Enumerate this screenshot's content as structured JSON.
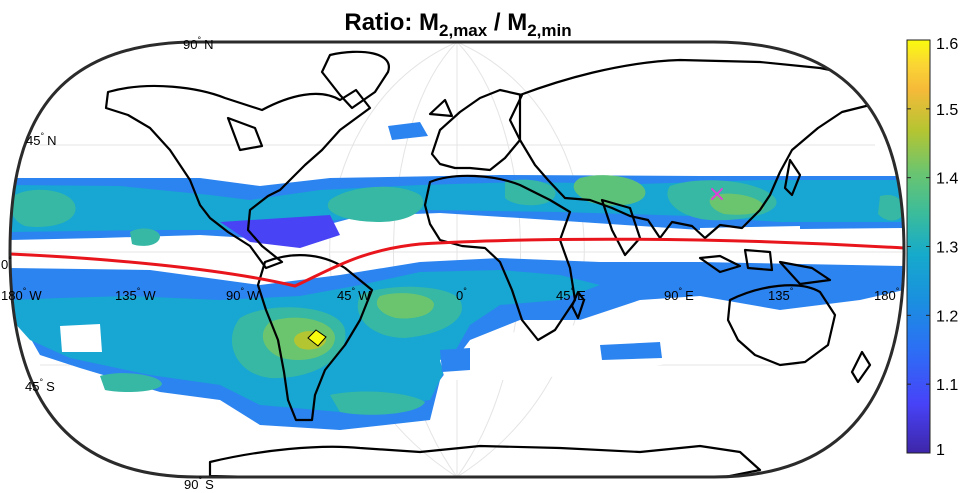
{
  "title": {
    "prefix": "Ratio: M",
    "sub1": "2,max",
    "mid": " / M",
    "sub2": "2,min"
  },
  "lat_labels": [
    {
      "text": "90",
      "deg": "°",
      "dir": "N"
    },
    {
      "text": "45",
      "deg": "°",
      "dir": "N"
    },
    {
      "text": "0",
      "deg": "°",
      "dir": ""
    },
    {
      "text": "45",
      "deg": "°",
      "dir": "S"
    },
    {
      "text": "90",
      "deg": "°",
      "dir": "S"
    }
  ],
  "lon_labels": [
    {
      "text": "180",
      "deg": "°",
      "dir": "W"
    },
    {
      "text": "135",
      "deg": "°",
      "dir": "W"
    },
    {
      "text": "90",
      "deg": "°",
      "dir": "W"
    },
    {
      "text": "45",
      "deg": "°",
      "dir": "W"
    },
    {
      "text": "0",
      "deg": "°",
      "dir": ""
    },
    {
      "text": "45",
      "deg": "°",
      "dir": "E"
    },
    {
      "text": "90",
      "deg": "°",
      "dir": "E"
    },
    {
      "text": "135",
      "deg": "°",
      "dir": ""
    },
    {
      "text": "180",
      "deg": "°",
      "dir": ""
    }
  ],
  "colorbar": {
    "min": 1,
    "max": 1.6,
    "ticks": [
      "1",
      "1.1",
      "1.2",
      "1.3",
      "1.4",
      "1.5",
      "1.6"
    ],
    "colormap": [
      "#3e26a8",
      "#4743f8",
      "#2c6ff5",
      "#1a90df",
      "#16aacb",
      "#3bbc9b",
      "#6bc56f",
      "#b4c532",
      "#f6ba39",
      "#fad534",
      "#f9fb0e"
    ]
  },
  "colors": {
    "equator_line": "#e8161c",
    "marker": "#e040d8",
    "coastline": "#000000",
    "frame": "#2b2b2b"
  },
  "marker_symbol": "×"
}
